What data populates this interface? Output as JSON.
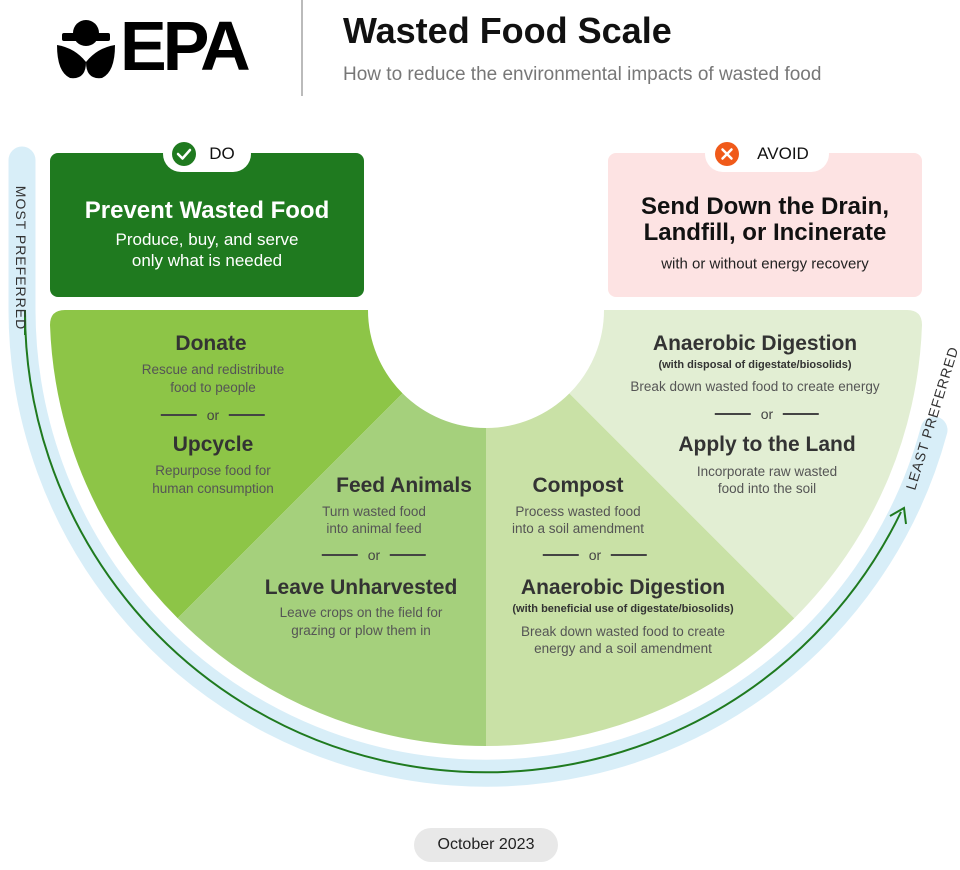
{
  "header": {
    "logo_text": "EPA",
    "title": "Wasted Food Scale",
    "subtitle": "How to reduce the environmental impacts of wasted food"
  },
  "scale": {
    "most_label": "MOST PREFERRED",
    "least_label": "LEAST PREFERRED"
  },
  "do_box": {
    "badge": "DO",
    "badge_icon": "check-circle-icon",
    "title": "Prevent Wasted Food",
    "lines": [
      "Produce, buy, and serve",
      "only what is needed"
    ],
    "color": "#1f7a1f"
  },
  "avoid_box": {
    "badge": "AVOID",
    "badge_icon": "x-circle-icon",
    "title_lines": [
      "Send Down the Drain,",
      "Landfill, or Incinerate"
    ],
    "subtitle": "with or without energy recovery",
    "color": "#fde3e3"
  },
  "tiers": [
    {
      "color": "#8dc547",
      "options": [
        {
          "title": "Donate",
          "lines": [
            "Rescue and redistribute",
            "food to people"
          ]
        },
        {
          "title": "Upcycle",
          "lines": [
            "Repurpose food for",
            "human consumption"
          ]
        }
      ],
      "separator": "or"
    },
    {
      "color": "#a5d07c",
      "options": [
        {
          "title": "Feed Animals",
          "lines": [
            "Turn wasted food",
            "into animal feed"
          ]
        },
        {
          "title": "Leave Unharvested",
          "lines": [
            "Leave crops on the field for",
            "grazing or plow them in"
          ]
        }
      ],
      "separator": "or"
    },
    {
      "color": "#c9e1a6",
      "options": [
        {
          "title": "Compost",
          "lines": [
            "Process wasted food",
            "into a soil amendment"
          ]
        },
        {
          "title": "Anaerobic Digestion",
          "note": "(with beneficial use of digestate/biosolids)",
          "lines": [
            "Break down wasted food to create",
            "energy and a soil amendment"
          ]
        }
      ],
      "separator": "or"
    },
    {
      "color": "#e2eed3",
      "options": [
        {
          "title": "Anaerobic Digestion",
          "note": "(with disposal of digestate/biosolids)",
          "lines": [
            "Break down wasted food to create energy"
          ]
        },
        {
          "title": "Apply to the Land",
          "lines": [
            "Incorporate raw wasted",
            "food into the soil"
          ]
        }
      ],
      "separator": "or"
    }
  ],
  "footer": {
    "date": "October 2023"
  }
}
